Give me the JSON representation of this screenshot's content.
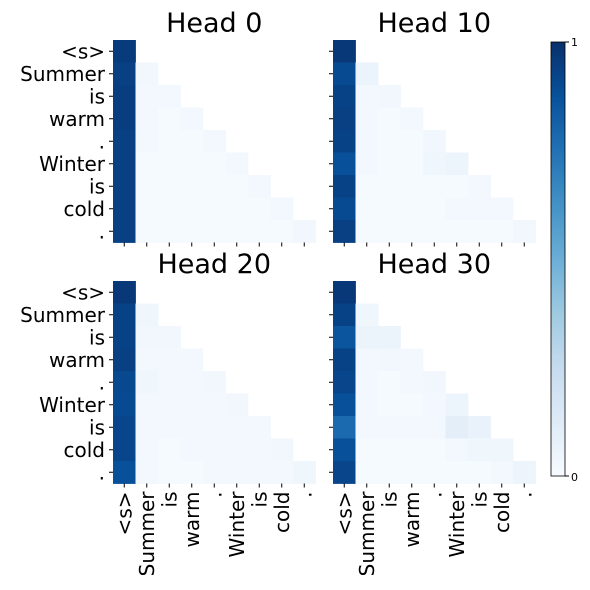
{
  "chart_data": {
    "type": "heatmap",
    "tokens": [
      "<s>",
      "Summer",
      "is",
      "warm",
      ".",
      "Winter",
      "is",
      "cold",
      "."
    ],
    "special_token_color": "#000080",
    "colormap": "Blues",
    "colorbar": {
      "min": 0,
      "max": 1,
      "tick_labels": [
        "0",
        "1"
      ]
    },
    "panels": [
      {
        "title": "Head 0",
        "matrix": [
          [
            0.96,
            null,
            null,
            null,
            null,
            null,
            null,
            null,
            null
          ],
          [
            0.94,
            0.03,
            null,
            null,
            null,
            null,
            null,
            null,
            null
          ],
          [
            0.95,
            0.02,
            0.02,
            null,
            null,
            null,
            null,
            null,
            null
          ],
          [
            0.95,
            0.02,
            0.01,
            0.02,
            null,
            null,
            null,
            null,
            null
          ],
          [
            0.94,
            0.02,
            0.01,
            0.01,
            0.02,
            null,
            null,
            null,
            null
          ],
          [
            0.94,
            0.01,
            0.01,
            0.01,
            0.01,
            0.02,
            null,
            null,
            null
          ],
          [
            0.94,
            0.01,
            0.01,
            0.01,
            0.01,
            0.01,
            0.02,
            null,
            null
          ],
          [
            0.94,
            0.01,
            0.01,
            0.01,
            0.01,
            0.01,
            0.01,
            0.02,
            null
          ],
          [
            0.94,
            0.01,
            0.01,
            0.01,
            0.01,
            0.01,
            0.01,
            0.01,
            0.03
          ]
        ]
      },
      {
        "title": "Head 10",
        "matrix": [
          [
            0.97,
            null,
            null,
            null,
            null,
            null,
            null,
            null,
            null
          ],
          [
            0.9,
            0.06,
            null,
            null,
            null,
            null,
            null,
            null,
            null
          ],
          [
            0.93,
            0.02,
            0.03,
            null,
            null,
            null,
            null,
            null,
            null
          ],
          [
            0.94,
            0.02,
            0.01,
            0.02,
            null,
            null,
            null,
            null,
            null
          ],
          [
            0.93,
            0.02,
            0.01,
            0.01,
            0.03,
            null,
            null,
            null,
            null
          ],
          [
            0.88,
            0.02,
            0.01,
            0.01,
            0.04,
            0.05,
            null,
            null,
            null
          ],
          [
            0.93,
            0.01,
            0.01,
            0.01,
            0.01,
            0.01,
            0.02,
            null,
            null
          ],
          [
            0.9,
            0.01,
            0.01,
            0.01,
            0.01,
            0.02,
            0.02,
            0.02,
            null
          ],
          [
            0.94,
            0.01,
            0.01,
            0.01,
            0.01,
            0.01,
            0.01,
            0.01,
            0.03
          ]
        ]
      },
      {
        "title": "Head 20",
        "matrix": [
          [
            0.97,
            null,
            null,
            null,
            null,
            null,
            null,
            null,
            null
          ],
          [
            0.93,
            0.04,
            null,
            null,
            null,
            null,
            null,
            null,
            null
          ],
          [
            0.93,
            0.03,
            0.03,
            null,
            null,
            null,
            null,
            null,
            null
          ],
          [
            0.94,
            0.02,
            0.02,
            0.02,
            null,
            null,
            null,
            null,
            null
          ],
          [
            0.91,
            0.04,
            0.02,
            0.02,
            0.03,
            null,
            null,
            null,
            null
          ],
          [
            0.9,
            0.02,
            0.02,
            0.02,
            0.02,
            0.03,
            null,
            null,
            null
          ],
          [
            0.92,
            0.02,
            0.02,
            0.02,
            0.02,
            0.02,
            0.02,
            null,
            null
          ],
          [
            0.92,
            0.02,
            0.01,
            0.02,
            0.02,
            0.02,
            0.02,
            0.03,
            null
          ],
          [
            0.88,
            0.02,
            0.01,
            0.01,
            0.02,
            0.02,
            0.02,
            0.02,
            0.04
          ]
        ]
      },
      {
        "title": "Head 30",
        "matrix": [
          [
            0.97,
            null,
            null,
            null,
            null,
            null,
            null,
            null,
            null
          ],
          [
            0.93,
            0.04,
            null,
            null,
            null,
            null,
            null,
            null,
            null
          ],
          [
            0.86,
            0.06,
            0.06,
            null,
            null,
            null,
            null,
            null,
            null
          ],
          [
            0.93,
            0.02,
            0.03,
            0.02,
            null,
            null,
            null,
            null,
            null
          ],
          [
            0.92,
            0.02,
            0.01,
            0.02,
            0.03,
            null,
            null,
            null,
            null
          ],
          [
            0.88,
            0.02,
            0.01,
            0.01,
            0.02,
            0.05,
            null,
            null,
            null
          ],
          [
            0.78,
            0.02,
            0.02,
            0.02,
            0.02,
            0.1,
            0.07,
            null,
            null
          ],
          [
            0.88,
            0.01,
            0.01,
            0.01,
            0.01,
            0.02,
            0.04,
            0.04,
            null
          ],
          [
            0.92,
            0.01,
            0.01,
            0.01,
            0.01,
            0.01,
            0.01,
            0.02,
            0.05
          ]
        ]
      }
    ]
  }
}
